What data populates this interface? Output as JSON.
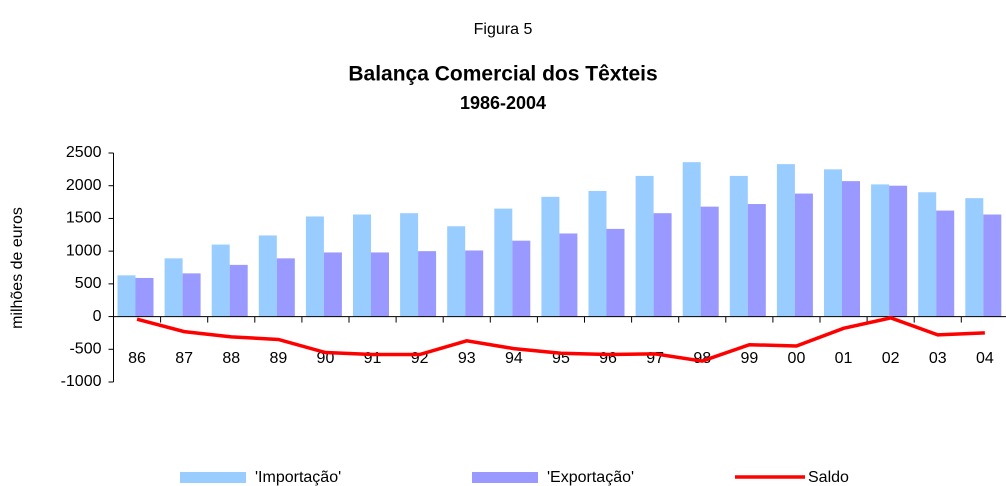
{
  "chart_data": {
    "type": "bar_line",
    "figure_label": "Figura 5",
    "title": "Balança Comercial dos Têxteis",
    "subtitle": "1986-2004",
    "y_label": "milhões de euros",
    "categories": [
      "86",
      "87",
      "88",
      "89",
      "90",
      "91",
      "92",
      "93",
      "94",
      "95",
      "96",
      "97",
      "98",
      "99",
      "00",
      "01",
      "02",
      "03",
      "04"
    ],
    "series": [
      {
        "name": "'Importação'",
        "color": "#99ccff",
        "kind": "bar",
        "values": [
          630,
          890,
          1100,
          1240,
          1530,
          1560,
          1580,
          1380,
          1650,
          1830,
          1920,
          2150,
          2360,
          2150,
          2330,
          2250,
          2020,
          1900,
          1810
        ]
      },
      {
        "name": "'Exportação'",
        "color": "#9999ff",
        "kind": "bar",
        "values": [
          590,
          660,
          790,
          890,
          980,
          980,
          1000,
          1010,
          1160,
          1270,
          1340,
          1580,
          1680,
          1720,
          1880,
          2070,
          2000,
          1620,
          1560
        ]
      },
      {
        "name": "Saldo",
        "color": "#ff0000",
        "kind": "line",
        "values": [
          -40,
          -230,
          -310,
          -350,
          -550,
          -580,
          -580,
          -370,
          -490,
          -560,
          -580,
          -570,
          -680,
          -430,
          -450,
          -180,
          -20,
          -280,
          -250
        ]
      }
    ],
    "ylim": [
      -1000,
      2500
    ],
    "yticks": [
      -1000,
      -500,
      0,
      500,
      1000,
      1500,
      2000,
      2500
    ],
    "legend": "bottom"
  }
}
